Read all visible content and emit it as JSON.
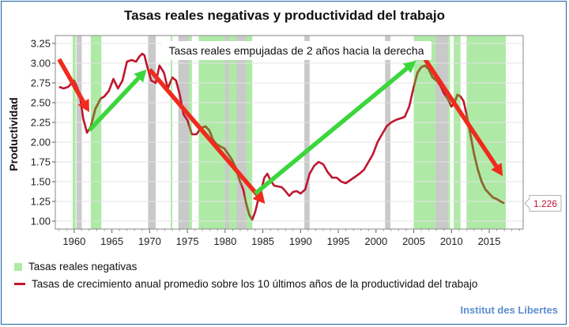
{
  "chart_data": {
    "type": "line",
    "title": "Tasas reales negativas y productividad del trabajo",
    "ylabel": "Productividad",
    "xlabel": "",
    "xlim": [
      1957.5,
      2019.5
    ],
    "ylim": [
      0.9,
      3.35
    ],
    "x_ticks": [
      1960,
      1965,
      1970,
      1975,
      1980,
      1985,
      1990,
      1995,
      2000,
      2005,
      2010,
      2015
    ],
    "y_ticks": [
      1.0,
      1.25,
      1.5,
      1.75,
      2.0,
      2.25,
      2.5,
      2.75,
      3.0,
      3.25
    ],
    "y_tick_labels": [
      "1.00",
      "1.25",
      "1.50",
      "1.75",
      "2.00",
      "2.25",
      "2.50",
      "2.75",
      "3.00",
      "3.25"
    ],
    "annotation": "Tasas reales empujadas de 2 años hacia la derecha",
    "last_value_label": "1.226",
    "last_value": 1.226,
    "negative_rate_periods": [
      [
        1959.8,
        1960.2
      ],
      [
        1962.2,
        1963.6
      ],
      [
        1972.8,
        1973.0
      ],
      [
        1975.2,
        1975.6
      ],
      [
        1976.5,
        1982.2
      ],
      [
        1982.6,
        1983.6
      ],
      [
        2005.0,
        2008.2
      ],
      [
        2009.2,
        2009.8
      ],
      [
        2010.3,
        2011.2
      ],
      [
        2012.0,
        2017.2
      ]
    ],
    "recession_periods": [
      [
        1960.3,
        1961.0
      ],
      [
        1969.8,
        1970.8
      ],
      [
        1973.8,
        1975.2
      ],
      [
        1980.0,
        1980.5
      ],
      [
        1981.5,
        1982.8
      ],
      [
        1990.5,
        1991.2
      ],
      [
        2001.2,
        2001.9
      ],
      [
        2007.9,
        2009.5
      ]
    ],
    "series": [
      {
        "name": "Tasas de crecimiento anual promedio sobre los 10 últimos años de la productividad del trabajo",
        "color": "#c0152f",
        "x": [
          1958,
          1958.6,
          1959.2,
          1960,
          1960.7,
          1961.2,
          1961.7,
          1962.2,
          1962.8,
          1963.5,
          1964,
          1964.6,
          1965.2,
          1965.8,
          1966.4,
          1967,
          1967.6,
          1968.2,
          1968.6,
          1969,
          1969.3,
          1969.7,
          1970.2,
          1970.8,
          1971.3,
          1971.9,
          1972.4,
          1973,
          1973.5,
          1974,
          1974.5,
          1975,
          1975.6,
          1976.2,
          1976.8,
          1977.4,
          1977.9,
          1978.4,
          1978.8,
          1979.3,
          1979.9,
          1980.4,
          1980.9,
          1981.4,
          1981.9,
          1982.4,
          1982.8,
          1983.2,
          1983.6,
          1984,
          1984.4,
          1984.8,
          1985.2,
          1985.6,
          1986,
          1986.5,
          1987,
          1987.5,
          1988,
          1988.5,
          1989,
          1989.5,
          1990,
          1990.6,
          1991.2,
          1991.8,
          1992.4,
          1993,
          1993.6,
          1994.2,
          1994.8,
          1995.4,
          1996,
          1996.6,
          1997.2,
          1997.8,
          1998.4,
          1999,
          1999.6,
          2000.2,
          2000.8,
          2001.4,
          2002,
          2002.6,
          2003.2,
          2003.8,
          2004.4,
          2005,
          2005.5,
          2006,
          2006.5,
          2007,
          2007.5,
          2008,
          2008.5,
          2009,
          2009.5,
          2010,
          2010.4,
          2010.8,
          2011.2,
          2011.6,
          2012,
          2012.5,
          2013,
          2013.5,
          2014,
          2014.5,
          2015,
          2015.5,
          2016,
          2016.5,
          2017
        ],
        "y": [
          2.7,
          2.68,
          2.7,
          2.78,
          2.62,
          2.3,
          2.12,
          2.2,
          2.42,
          2.55,
          2.58,
          2.65,
          2.8,
          2.68,
          2.78,
          3.02,
          3.04,
          3.02,
          3.08,
          3.12,
          3.1,
          2.95,
          2.78,
          2.75,
          2.97,
          2.88,
          2.68,
          2.82,
          2.78,
          2.6,
          2.35,
          2.28,
          2.1,
          2.1,
          2.18,
          2.2,
          2.15,
          2.03,
          1.98,
          1.95,
          1.92,
          1.85,
          1.78,
          1.68,
          1.52,
          1.4,
          1.22,
          1.08,
          1.02,
          1.12,
          1.28,
          1.4,
          1.55,
          1.6,
          1.52,
          1.45,
          1.44,
          1.43,
          1.38,
          1.32,
          1.37,
          1.38,
          1.35,
          1.4,
          1.6,
          1.7,
          1.75,
          1.72,
          1.62,
          1.55,
          1.55,
          1.5,
          1.48,
          1.52,
          1.56,
          1.6,
          1.65,
          1.75,
          1.85,
          2.0,
          2.1,
          2.2,
          2.25,
          2.28,
          2.3,
          2.32,
          2.45,
          2.7,
          2.88,
          2.95,
          2.97,
          2.92,
          2.82,
          2.78,
          2.72,
          2.62,
          2.55,
          2.45,
          2.5,
          2.6,
          2.58,
          2.52,
          2.35,
          2.1,
          1.85,
          1.65,
          1.5,
          1.4,
          1.35,
          1.3,
          1.28,
          1.25,
          1.226
        ]
      }
    ],
    "arrows": [
      {
        "name": "arrow-decline-1958-1962",
        "color": "#ef2b1d",
        "from": [
          1958,
          3.05
        ],
        "to": [
          1962,
          2.38
        ]
      },
      {
        "name": "arrow-rise-1962-1969",
        "color": "#3cd63c",
        "from": [
          1962,
          2.15
        ],
        "to": [
          1969.6,
          2.92
        ]
      },
      {
        "name": "arrow-decline-1970-1985",
        "color": "#ef2b1d",
        "from": [
          1970,
          2.92
        ],
        "to": [
          1985.3,
          1.22
        ]
      },
      {
        "name": "arrow-rise-1984-2005",
        "color": "#3cd63c",
        "from": [
          1984,
          1.35
        ],
        "to": [
          2005.3,
          3.03
        ]
      },
      {
        "name": "arrow-decline-2006-2017",
        "color": "#ef2b1d",
        "from": [
          2006.5,
          3.05
        ],
        "to": [
          2016.8,
          1.57
        ]
      }
    ]
  },
  "legend": {
    "negative_rates": "Tasas reales negativas",
    "productivity": "Tasas de crecimiento anual promedio sobre los 10 últimos años de la productividad del trabajo"
  },
  "source": "Institut des Libertes",
  "colors": {
    "negative_rate_fill": "#aeeaa6",
    "recession_fill": "#c9c9c9",
    "series_color": "#c0152f",
    "series_in_negative": "#8b6a2d",
    "axis": "#555555"
  }
}
